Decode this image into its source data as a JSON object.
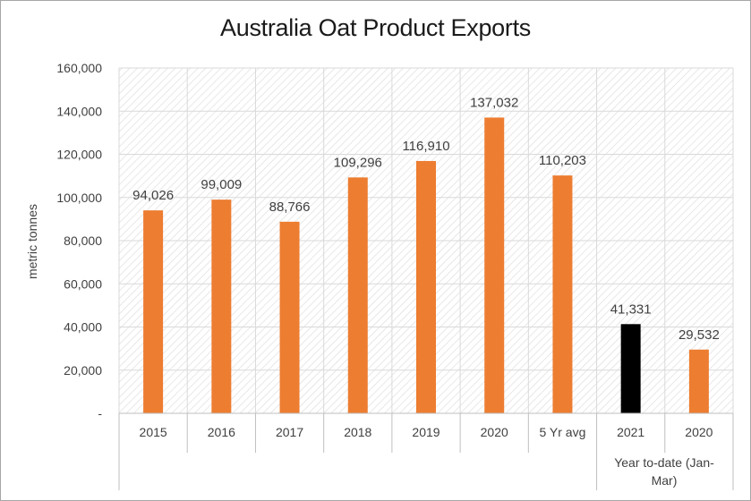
{
  "chart_data": {
    "type": "bar",
    "title": "Australia Oat Product Exports",
    "ylabel": "metric tonnes",
    "xlabel": "",
    "ylim": [
      0,
      160000
    ],
    "yticks": [
      0,
      20000,
      40000,
      60000,
      80000,
      100000,
      120000,
      140000,
      160000
    ],
    "ytick_labels": [
      "-",
      "20,000",
      "40,000",
      "60,000",
      "80,000",
      "100,000",
      "120,000",
      "140,000",
      "160,000"
    ],
    "categories": [
      "2015",
      "2016",
      "2017",
      "2018",
      "2019",
      "2020",
      "5 Yr avg",
      "2021",
      "2020"
    ],
    "values": [
      94026,
      99009,
      88766,
      109296,
      116910,
      137032,
      110203,
      41331,
      29532
    ],
    "value_labels": [
      "94,026",
      "99,009",
      "88,766",
      "109,296",
      "116,910",
      "137,032",
      "110,203",
      "41,331",
      "29,532"
    ],
    "bar_colors": [
      "#ed7d31",
      "#ed7d31",
      "#ed7d31",
      "#ed7d31",
      "#ed7d31",
      "#ed7d31",
      "#ed7d31",
      "#000000",
      "#ed7d31"
    ],
    "group_label": "Year to-date (Jan-Mar)",
    "grid": true
  }
}
